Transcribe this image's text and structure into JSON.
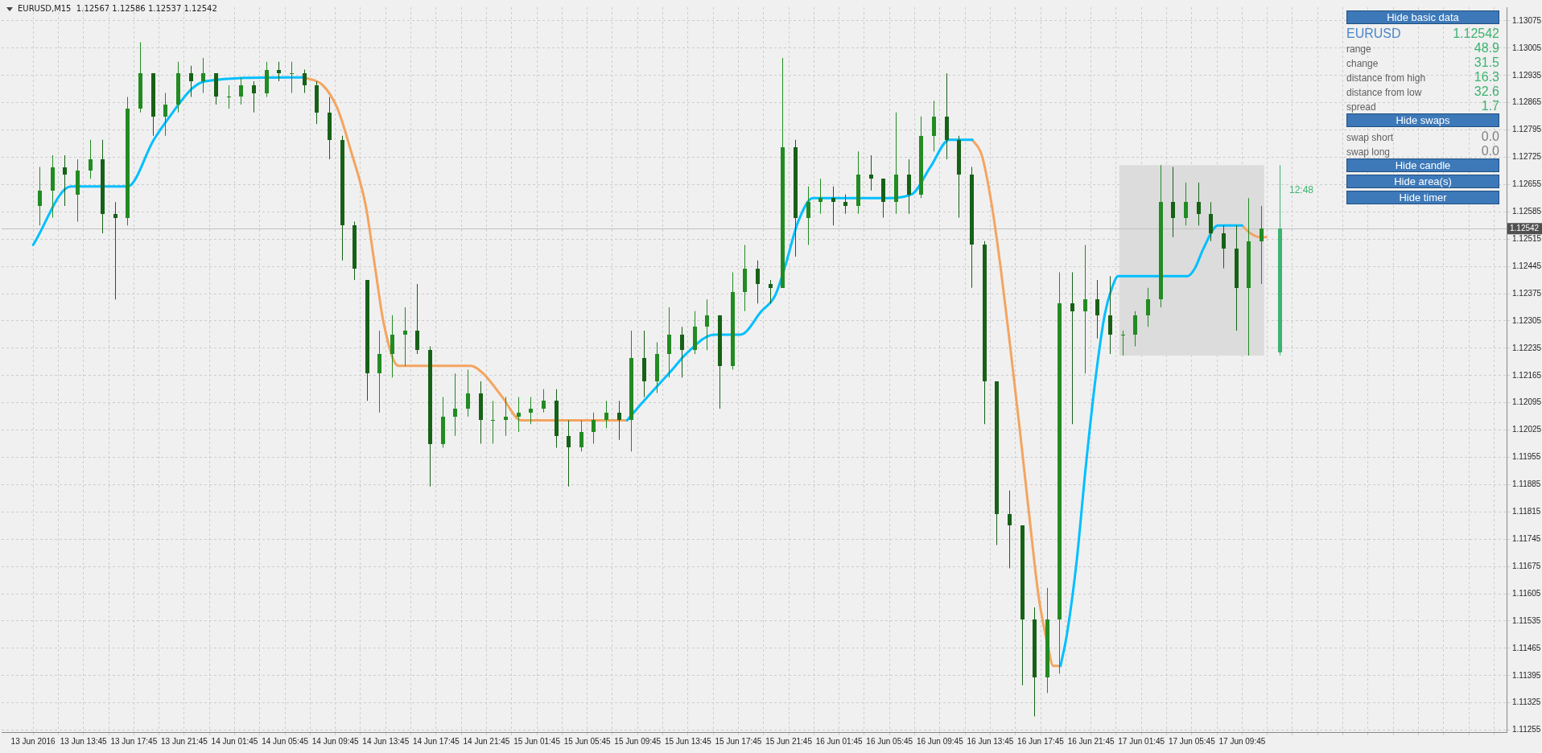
{
  "chart_data": [
    {
      "type": "candlestick",
      "title": "EURUSD,M15  1.12567 1.12586 1.12537 1.12542",
      "xlim": [
        "2016-06-13T07:15",
        "2016-06-18T06:45"
      ],
      "xticks": [
        {
          "value": "2016-06-13T09:45",
          "label": "13 Jun 2016"
        },
        {
          "value": "2016-06-13T11:45",
          "label": null
        },
        {
          "value": "2016-06-13T13:45",
          "label": "13 Jun 13:45"
        },
        {
          "value": "2016-06-13T15:45",
          "label": null
        },
        {
          "value": "2016-06-13T17:45",
          "label": "13 Jun 17:45"
        },
        {
          "value": "2016-06-13T19:45",
          "label": null
        },
        {
          "value": "2016-06-13T21:45",
          "label": "13 Jun 21:45"
        },
        {
          "value": "2016-06-13T23:45",
          "label": null
        },
        {
          "value": "2016-06-14T01:45",
          "label": "14 Jun 01:45"
        },
        {
          "value": "2016-06-14T03:45",
          "label": null
        },
        {
          "value": "2016-06-14T05:45",
          "label": "14 Jun 05:45"
        },
        {
          "value": "2016-06-14T07:45",
          "label": null
        },
        {
          "value": "2016-06-14T09:45",
          "label": "14 Jun 09:45"
        },
        {
          "value": "2016-06-14T11:45",
          "label": null
        },
        {
          "value": "2016-06-14T13:45",
          "label": "14 Jun 13:45"
        },
        {
          "value": "2016-06-14T15:45",
          "label": null
        },
        {
          "value": "2016-06-14T17:45",
          "label": "14 Jun 17:45"
        },
        {
          "value": "2016-06-14T19:45",
          "label": null
        },
        {
          "value": "2016-06-14T21:45",
          "label": "14 Jun 21:45"
        },
        {
          "value": "2016-06-14T23:45",
          "label": null
        },
        {
          "value": "2016-06-15T01:45",
          "label": "15 Jun 01:45"
        },
        {
          "value": "2016-06-15T03:45",
          "label": null
        },
        {
          "value": "2016-06-15T05:45",
          "label": "15 Jun 05:45"
        },
        {
          "value": "2016-06-15T07:45",
          "label": null
        },
        {
          "value": "2016-06-15T09:45",
          "label": "15 Jun 09:45"
        },
        {
          "value": "2016-06-15T11:45",
          "label": null
        },
        {
          "value": "2016-06-15T13:45",
          "label": "15 Jun 13:45"
        },
        {
          "value": "2016-06-15T15:45",
          "label": null
        },
        {
          "value": "2016-06-15T17:45",
          "label": "15 Jun 17:45"
        },
        {
          "value": "2016-06-15T19:45",
          "label": null
        },
        {
          "value": "2016-06-15T21:45",
          "label": "15 Jun 21:45"
        },
        {
          "value": "2016-06-15T23:45",
          "label": null
        },
        {
          "value": "2016-06-16T01:45",
          "label": "16 Jun 01:45"
        },
        {
          "value": "2016-06-16T03:45",
          "label": null
        },
        {
          "value": "2016-06-16T05:45",
          "label": "16 Jun 05:45"
        },
        {
          "value": "2016-06-16T07:45",
          "label": null
        },
        {
          "value": "2016-06-16T09:45",
          "label": "16 Jun 09:45"
        },
        {
          "value": "2016-06-16T11:45",
          "label": null
        },
        {
          "value": "2016-06-16T13:45",
          "label": "16 Jun 13:45"
        },
        {
          "value": "2016-06-16T15:45",
          "label": null
        },
        {
          "value": "2016-06-16T17:45",
          "label": "16 Jun 17:45"
        },
        {
          "value": "2016-06-16T19:45",
          "label": null
        },
        {
          "value": "2016-06-16T21:45",
          "label": "16 Jun 21:45"
        },
        {
          "value": "2016-06-16T23:45",
          "label": null
        },
        {
          "value": "2016-06-17T01:45",
          "label": "17 Jun 01:45"
        },
        {
          "value": "2016-06-17T03:45",
          "label": null
        },
        {
          "value": "2016-06-17T05:45",
          "label": "17 Jun 05:45"
        },
        {
          "value": "2016-06-17T07:45",
          "label": null
        },
        {
          "value": "2016-06-17T09:45",
          "label": "17 Jun 09:45"
        },
        {
          "value": "2016-06-17T11:45",
          "label": null
        },
        {
          "value": "2016-06-17T13:45",
          "label": null
        },
        {
          "value": "2016-06-17T15:45",
          "label": null
        },
        {
          "value": "2016-06-17T17:45",
          "label": null
        },
        {
          "value": "2016-06-17T19:45",
          "label": null
        },
        {
          "value": "2016-06-17T21:45",
          "label": null
        },
        {
          "value": "2016-06-17T23:45",
          "label": null
        },
        {
          "value": "2016-06-18T01:45",
          "label": null
        },
        {
          "value": "2016-06-18T03:45",
          "label": null
        },
        {
          "value": "2016-06-18T05:45",
          "label": null
        }
      ],
      "ylim": [
        1.1125,
        1.1311
      ],
      "yticks": [
        1.13075,
        1.13005,
        1.12935,
        1.12865,
        1.12795,
        1.12725,
        1.12655,
        1.12585,
        1.12515,
        1.12445,
        1.12375,
        1.12305,
        1.12235,
        1.12165,
        1.12095,
        1.12025,
        1.11955,
        1.11885,
        1.11815,
        1.11745,
        1.11675,
        1.11605,
        1.11535,
        1.11465,
        1.11395,
        1.11325,
        1.11255
      ],
      "grid": true,
      "legend": false,
      "marker": "none",
      "line_style": "solid",
      "series": [
        {
          "type": "candlestick",
          "color": "#228b22",
          "colors": [
            "#228b22",
            "#228b22",
            "#176117",
            "#228b22",
            "#228b22",
            "#176117",
            "#176117",
            "#228b22",
            "#228b22",
            "#176117",
            "#228b22",
            "#228b22",
            "#176117",
            "#228b22",
            "#176117",
            "#228b22",
            "#228b22",
            "#176117",
            "#228b22",
            "#176117",
            "#228b22",
            "#176117",
            "#176117",
            "#176117",
            "#176117",
            "#176117",
            "#176117",
            "#228b22",
            "#228b22",
            "#228b22",
            "#176117",
            "#176117",
            "#228b22",
            "#228b22",
            "#228b22",
            "#176117",
            "#228b22",
            "#228b22",
            "#228b22",
            "#228b22",
            "#228b22",
            "#176117",
            "#176117",
            "#228b22",
            "#228b22",
            "#228b22",
            "#176117",
            "#228b22",
            "#176117",
            "#228b22",
            "#228b22",
            "#176117",
            "#228b22",
            "#228b22",
            "#176117",
            "#228b22",
            "#228b22",
            "#176117",
            "#176117",
            "#228b22",
            "#176117",
            "#228b22",
            "#228b22",
            "#176117",
            "#176117",
            "#228b22",
            "#176117",
            "#176117",
            "#228b22",
            "#176117",
            "#228b22",
            "#228b22",
            "#176117",
            "#176117",
            "#176117",
            "#176117",
            "#176117",
            "#176117",
            "#176117",
            "#176117",
            "#228b22",
            "#228b22",
            "#176117",
            "#228b22",
            "#176117",
            "#176117",
            "#228b22",
            "#228b22",
            "#228b22",
            "#228b22",
            "#176117",
            "#228b22",
            "#176117",
            "#176117",
            "#176117",
            "#176117",
            "#228b22",
            "#228b22"
          ],
          "x": [
            "2016-06-13T10:15",
            "2016-06-13T11:15",
            "2016-06-13T12:15",
            "2016-06-13T13:15",
            "2016-06-13T14:15",
            "2016-06-13T15:15",
            "2016-06-13T16:15",
            "2016-06-13T17:15",
            "2016-06-13T18:15",
            "2016-06-13T19:15",
            "2016-06-13T20:15",
            "2016-06-13T21:15",
            "2016-06-13T22:15",
            "2016-06-13T23:15",
            "2016-06-14T00:15",
            "2016-06-14T01:15",
            "2016-06-14T02:15",
            "2016-06-14T03:15",
            "2016-06-14T04:15",
            "2016-06-14T05:15",
            "2016-06-14T06:15",
            "2016-06-14T07:15",
            "2016-06-14T08:15",
            "2016-06-14T09:15",
            "2016-06-14T10:15",
            "2016-06-14T11:15",
            "2016-06-14T12:15",
            "2016-06-14T13:15",
            "2016-06-14T14:15",
            "2016-06-14T15:15",
            "2016-06-14T16:15",
            "2016-06-14T17:15",
            "2016-06-14T18:15",
            "2016-06-14T19:15",
            "2016-06-14T20:15",
            "2016-06-14T21:15",
            "2016-06-14T22:15",
            "2016-06-14T23:15",
            "2016-06-15T00:15",
            "2016-06-15T01:15",
            "2016-06-15T02:15",
            "2016-06-15T03:15",
            "2016-06-15T04:15",
            "2016-06-15T05:15",
            "2016-06-15T06:15",
            "2016-06-15T07:15",
            "2016-06-15T08:15",
            "2016-06-15T09:15",
            "2016-06-15T10:15",
            "2016-06-15T11:15",
            "2016-06-15T12:15",
            "2016-06-15T13:15",
            "2016-06-15T14:15",
            "2016-06-15T15:15",
            "2016-06-15T16:15",
            "2016-06-15T17:15",
            "2016-06-15T18:15",
            "2016-06-15T19:15",
            "2016-06-15T20:15",
            "2016-06-15T21:15",
            "2016-06-15T22:15",
            "2016-06-15T23:15",
            "2016-06-16T00:15",
            "2016-06-16T01:15",
            "2016-06-16T02:15",
            "2016-06-16T03:15",
            "2016-06-16T04:15",
            "2016-06-16T05:15",
            "2016-06-16T06:15",
            "2016-06-16T07:15",
            "2016-06-16T08:15",
            "2016-06-16T09:15",
            "2016-06-16T10:15",
            "2016-06-16T11:15",
            "2016-06-16T12:15",
            "2016-06-16T13:15",
            "2016-06-16T14:15",
            "2016-06-16T15:15",
            "2016-06-16T16:15",
            "2016-06-16T17:15",
            "2016-06-16T18:15",
            "2016-06-16T19:15",
            "2016-06-16T20:15",
            "2016-06-16T21:15",
            "2016-06-16T22:15",
            "2016-06-16T23:15",
            "2016-06-17T00:15",
            "2016-06-17T01:15",
            "2016-06-17T02:15",
            "2016-06-17T03:15",
            "2016-06-17T04:15",
            "2016-06-17T05:15",
            "2016-06-17T06:15",
            "2016-06-17T07:15",
            "2016-06-17T08:15",
            "2016-06-17T09:15",
            "2016-06-17T10:15",
            "2016-06-17T11:15"
          ],
          "ohlc": [
            [
              1.126,
              1.127,
              1.1255,
              1.1264
            ],
            [
              1.1264,
              1.1273,
              1.1257,
              1.127
            ],
            [
              1.127,
              1.1273,
              1.126,
              1.1268
            ],
            [
              1.1263,
              1.1272,
              1.1256,
              1.1269
            ],
            [
              1.1269,
              1.1277,
              1.1267,
              1.1272
            ],
            [
              1.1272,
              1.1277,
              1.1253,
              1.1258
            ],
            [
              1.1258,
              1.1261,
              1.1236,
              1.1257
            ],
            [
              1.1257,
              1.1288,
              1.1255,
              1.1285
            ],
            [
              1.1285,
              1.1302,
              1.1284,
              1.1294
            ],
            [
              1.1294,
              1.1294,
              1.1278,
              1.1283
            ],
            [
              1.1283,
              1.1289,
              1.1278,
              1.1286
            ],
            [
              1.1286,
              1.1297,
              1.1284,
              1.1294
            ],
            [
              1.1294,
              1.1296,
              1.1288,
              1.1292
            ],
            [
              1.1292,
              1.1298,
              1.1289,
              1.1294
            ],
            [
              1.1294,
              1.1294,
              1.1286,
              1.1288
            ],
            [
              1.1288,
              1.1291,
              1.1285,
              1.1288
            ],
            [
              1.1288,
              1.1293,
              1.1286,
              1.1291
            ],
            [
              1.1291,
              1.1292,
              1.1284,
              1.1289
            ],
            [
              1.1289,
              1.1297,
              1.1288,
              1.1295
            ],
            [
              1.1295,
              1.1297,
              1.1292,
              1.1294
            ],
            [
              1.1294,
              1.1297,
              1.1289,
              1.1294
            ],
            [
              1.1294,
              1.1295,
              1.1289,
              1.1291
            ],
            [
              1.1291,
              1.1292,
              1.1281,
              1.1284
            ],
            [
              1.1284,
              1.1288,
              1.1272,
              1.1277
            ],
            [
              1.1277,
              1.1278,
              1.1246,
              1.1255
            ],
            [
              1.1255,
              1.1256,
              1.1241,
              1.1244
            ],
            [
              1.1241,
              1.1241,
              1.121,
              1.1217
            ],
            [
              1.1217,
              1.1228,
              1.1207,
              1.1222
            ],
            [
              1.1222,
              1.1232,
              1.1216,
              1.1227
            ],
            [
              1.1227,
              1.1234,
              1.1219,
              1.1228
            ],
            [
              1.1228,
              1.124,
              1.1222,
              1.1223
            ],
            [
              1.1223,
              1.1224,
              1.1188,
              1.1199
            ],
            [
              1.1199,
              1.1211,
              1.1198,
              1.1206
            ],
            [
              1.1206,
              1.1217,
              1.1201,
              1.1208
            ],
            [
              1.1208,
              1.1218,
              1.1206,
              1.1212
            ],
            [
              1.1212,
              1.1215,
              1.1199,
              1.1205
            ],
            [
              1.1205,
              1.121,
              1.1199,
              1.1205
            ],
            [
              1.1205,
              1.1211,
              1.1201,
              1.1206
            ],
            [
              1.1206,
              1.1211,
              1.1202,
              1.1207
            ],
            [
              1.1207,
              1.1211,
              1.1204,
              1.1208
            ],
            [
              1.1208,
              1.1213,
              1.1207,
              1.121
            ],
            [
              1.121,
              1.1213,
              1.1198,
              1.1201
            ],
            [
              1.1201,
              1.1205,
              1.1188,
              1.1198
            ],
            [
              1.1198,
              1.1205,
              1.1197,
              1.1202
            ],
            [
              1.1202,
              1.1207,
              1.1199,
              1.1205
            ],
            [
              1.1205,
              1.121,
              1.1203,
              1.1207
            ],
            [
              1.1207,
              1.121,
              1.12,
              1.1205
            ],
            [
              1.1205,
              1.1228,
              1.1197,
              1.1221
            ],
            [
              1.1221,
              1.1228,
              1.1211,
              1.1215
            ],
            [
              1.1215,
              1.1225,
              1.1212,
              1.1222
            ],
            [
              1.1222,
              1.1234,
              1.1216,
              1.1227
            ],
            [
              1.1227,
              1.1229,
              1.1216,
              1.1223
            ],
            [
              1.1223,
              1.1233,
              1.1222,
              1.1229
            ],
            [
              1.1229,
              1.1236,
              1.1223,
              1.1232
            ],
            [
              1.1232,
              1.1232,
              1.1208,
              1.1219
            ],
            [
              1.1219,
              1.1243,
              1.1218,
              1.1238
            ],
            [
              1.1238,
              1.125,
              1.1233,
              1.1244
            ],
            [
              1.1244,
              1.1246,
              1.1235,
              1.124
            ],
            [
              1.124,
              1.1241,
              1.1235,
              1.1239
            ],
            [
              1.1239,
              1.1298,
              1.1239,
              1.1275
            ],
            [
              1.1275,
              1.1277,
              1.1247,
              1.1257
            ],
            [
              1.1257,
              1.1265,
              1.125,
              1.1261
            ],
            [
              1.1261,
              1.1267,
              1.1258,
              1.1262
            ],
            [
              1.1262,
              1.1265,
              1.1255,
              1.1261
            ],
            [
              1.1261,
              1.1263,
              1.1258,
              1.126
            ],
            [
              1.126,
              1.1274,
              1.1258,
              1.1268
            ],
            [
              1.1268,
              1.1273,
              1.1264,
              1.1267
            ],
            [
              1.1267,
              1.1267,
              1.1257,
              1.1261
            ],
            [
              1.1261,
              1.1284,
              1.1258,
              1.1268
            ],
            [
              1.1268,
              1.1272,
              1.1258,
              1.1263
            ],
            [
              1.1263,
              1.1283,
              1.1262,
              1.1278
            ],
            [
              1.1278,
              1.1287,
              1.1274,
              1.1283
            ],
            [
              1.1283,
              1.1294,
              1.1272,
              1.1277
            ],
            [
              1.1277,
              1.1278,
              1.1257,
              1.1268
            ],
            [
              1.1268,
              1.127,
              1.1239,
              1.125
            ],
            [
              1.125,
              1.1251,
              1.1204,
              1.1215
            ],
            [
              1.1215,
              1.1215,
              1.1173,
              1.1181
            ],
            [
              1.1181,
              1.1187,
              1.1167,
              1.1178
            ],
            [
              1.1178,
              1.1178,
              1.1137,
              1.1154
            ],
            [
              1.1154,
              1.1157,
              1.1129,
              1.1139
            ],
            [
              1.1139,
              1.1162,
              1.1135,
              1.1154
            ],
            [
              1.1154,
              1.1243,
              1.114,
              1.1235
            ],
            [
              1.1235,
              1.1243,
              1.1204,
              1.1233
            ],
            [
              1.1233,
              1.125,
              1.1217,
              1.1236
            ],
            [
              1.1236,
              1.1241,
              1.1226,
              1.1232
            ],
            [
              1.1232,
              1.1242,
              1.1222,
              1.1227
            ],
            [
              1.1227,
              1.1228,
              1.12216,
              1.1227
            ],
            [
              1.1227,
              1.1233,
              1.1224,
              1.1232
            ],
            [
              1.1232,
              1.1239,
              1.1229,
              1.1236
            ],
            [
              1.1236,
              1.12705,
              1.1234,
              1.1261
            ],
            [
              1.1261,
              1.127,
              1.1252,
              1.1257
            ],
            [
              1.1257,
              1.1266,
              1.1255,
              1.1261
            ],
            [
              1.1261,
              1.1266,
              1.1255,
              1.1258
            ],
            [
              1.1258,
              1.1261,
              1.1251,
              1.1253
            ],
            [
              1.1253,
              1.1255,
              1.1244,
              1.1249
            ],
            [
              1.1249,
              1.1255,
              1.1228,
              1.1239
            ],
            [
              1.1239,
              1.1262,
              1.12216,
              1.1251
            ],
            [
              1.1251,
              1.126,
              1.124,
              1.12542
            ]
          ]
        },
        {
          "type": "candlestick",
          "color": "#3cb371",
          "x": [
            "2016-06-17T12:45"
          ],
          "ohlc": [
            [
              1.12224,
              1.12705,
              1.12216,
              1.12542
            ]
          ]
        },
        {
          "type": "line",
          "color": "#00bfff",
          "x": [
            "2016-06-13T09:45",
            "2016-06-13T12:45",
            "2016-06-13T17:15",
            "2016-06-13T19:20",
            "2016-06-13T20:50",
            "2016-06-13T22:20",
            "2016-06-13T23:25",
            "2016-06-14T05:45",
            "2016-06-14T07:15",
            "2016-06-14T08:00",
            "2016-06-15T08:55",
            "2016-06-15T10:15",
            "2016-06-15T12:30",
            "2016-06-15T13:35",
            "2016-06-15T15:50",
            "2016-06-15T17:55",
            "2016-06-15T19:35",
            "2016-06-15T20:40",
            "2016-06-15T21:25",
            "2016-06-15T22:30",
            "2016-06-15T23:40",
            "2016-06-16T05:15",
            "2016-06-16T07:30",
            "2016-06-16T09:00",
            "2016-06-16T10:30",
            "2016-06-16T12:20",
            "2016-06-16T13:00",
            "2016-06-16T19:20",
            "2016-06-16T19:50",
            "2016-06-16T20:35",
            "2016-06-16T21:20",
            "2016-06-16T22:05",
            "2016-06-16T22:50",
            "2016-06-16T23:25",
            "2016-06-16T23:55",
            "2016-06-17T05:25",
            "2016-06-17T06:00",
            "2016-06-17T06:40",
            "2016-06-17T07:50",
            "2016-06-17T09:45"
          ],
          "values": [
            1.125,
            1.1265,
            1.1265,
            1.1277,
            1.1284,
            1.129,
            1.1292,
            1.1293,
            1.1293,
            null,
            1.1205,
            1.121,
            1.1218,
            1.1222,
            1.1227,
            1.1227,
            1.1233,
            1.1237,
            1.1244,
            1.1256,
            1.1262,
            1.1262,
            1.1263,
            1.127,
            1.1277,
            1.1277,
            null,
            1.1142,
            1.115,
            1.1168,
            1.1193,
            1.1215,
            1.1232,
            1.1239,
            1.1242,
            1.1242,
            1.1244,
            1.1249,
            1.1255,
            1.1255
          ]
        },
        {
          "type": "line",
          "color": "#f4a460",
          "x": [
            "2016-06-14T07:15",
            "2016-06-14T08:45",
            "2016-06-14T09:55",
            "2016-06-14T11:00",
            "2016-06-14T12:10",
            "2016-06-14T12:55",
            "2016-06-14T13:35",
            "2016-06-14T14:45",
            "2016-06-14T20:30",
            "2016-06-14T21:30",
            "2016-06-14T23:00",
            "2016-06-15T00:30",
            "2016-06-15T08:55",
            "2016-06-15T10:00",
            "2016-06-16T12:20",
            "2016-06-16T13:05",
            "2016-06-16T13:50",
            "2016-06-16T14:35",
            "2016-06-16T15:20",
            "2016-06-16T16:05",
            "2016-06-16T16:50",
            "2016-06-16T17:35",
            "2016-06-16T18:20",
            "2016-06-16T18:45",
            "2016-06-16T19:20",
            "2016-06-16T20:00",
            "2016-06-17T09:45",
            "2016-06-17T10:25",
            "2016-06-17T11:10",
            "2016-06-17T11:40"
          ],
          "values": [
            1.1293,
            1.1291,
            1.1285,
            1.1274,
            1.126,
            1.1244,
            1.123,
            1.1219,
            1.1219,
            1.1217,
            1.1211,
            1.1205,
            1.1205,
            null,
            1.1277,
            1.1273,
            1.1261,
            1.1244,
            1.1224,
            1.1203,
            1.1181,
            1.116,
            1.1147,
            1.1142,
            1.1142,
            null,
            1.1255,
            1.1253,
            1.1252,
            1.1252
          ]
        }
      ],
      "ref_lines": [
        {
          "axis": "y",
          "value": 1.12542,
          "label": "1.12542",
          "color": "#c0c0c0"
        }
      ],
      "bands": [
        {
          "axis": "x",
          "from": "2016-06-17T00:00",
          "to": "2016-06-17T11:30",
          "color": "#dcdcdc"
        }
      ],
      "annotations": [
        "12:48"
      ]
    },
    {
      "type": "other",
      "annotations": [
        "Hide basic data",
        "EURUSD",
        "1.12542",
        "range",
        "48.9",
        "change",
        "31.5",
        "distance from high",
        "16.3",
        "distance from low",
        "32.6",
        "spread",
        "1.7",
        "Hide swaps",
        "swap short",
        "0.0",
        "swap long",
        "0.0",
        "Hide candle",
        "Hide area(s)",
        "Hide timer"
      ]
    }
  ]
}
